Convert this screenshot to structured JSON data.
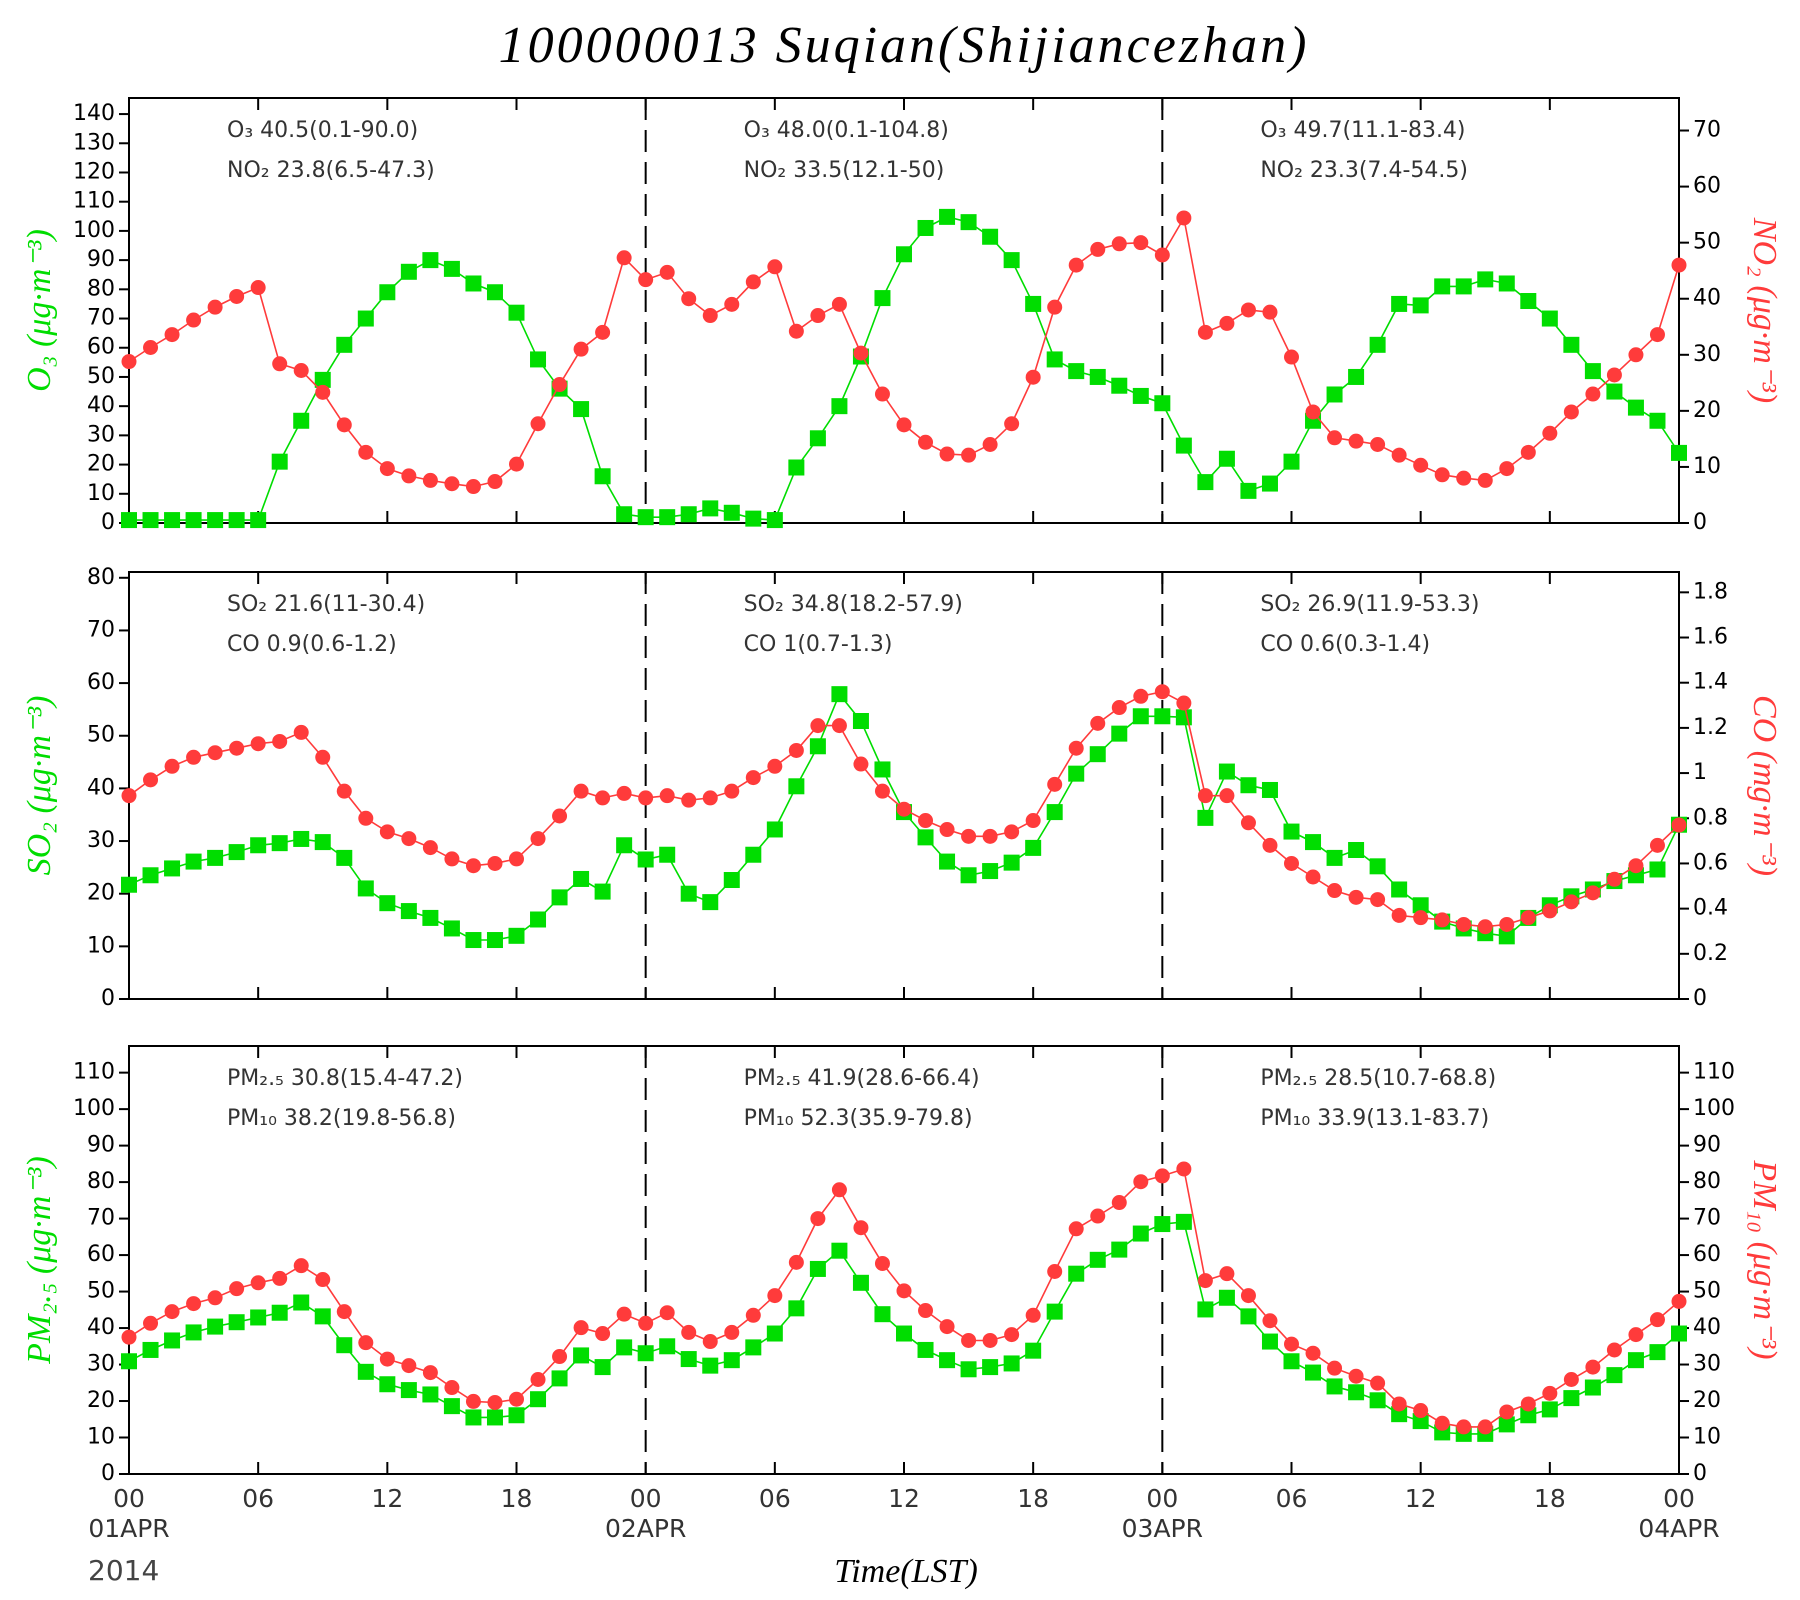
{
  "title": "100000013 Suqian(Shijiancezhan)",
  "xlabel": "Time(LST)",
  "year": "2014",
  "chart_data": [
    {
      "type": "line",
      "ylabel": "O₃   (μg·m⁻³)",
      "y2label": "NO₂   (μg·m⁻³)",
      "xlim": [
        0,
        72
      ],
      "xticks": [
        0,
        6,
        12,
        18,
        24,
        30,
        36,
        42,
        48,
        54,
        60,
        66,
        72
      ],
      "vlines": [
        24,
        48
      ],
      "ylim": [
        0,
        145.5
      ],
      "yticks": [
        0,
        10,
        20,
        30,
        40,
        50,
        60,
        70,
        80,
        90,
        100,
        110,
        120,
        130,
        140
      ],
      "y2lim": [
        0,
        75.8
      ],
      "y2ticks": [
        0,
        10,
        20,
        30,
        40,
        50,
        60,
        70
      ],
      "annotations": [
        [
          "O₃ 40.5(0.1-90.0)",
          "NO₂ 23.8(6.5-47.3)"
        ],
        [
          "O₃ 48.0(0.1-104.8)",
          "NO₂ 33.5(12.1-50)"
        ],
        [
          "O₃ 49.7(11.1-83.4)",
          "NO₂ 23.3(7.4-54.5)"
        ]
      ],
      "x": [
        0,
        1,
        2,
        3,
        4,
        5,
        6,
        7,
        8,
        9,
        10,
        11,
        12,
        13,
        14,
        15,
        16,
        17,
        18,
        19,
        20,
        21,
        22,
        23,
        24,
        25,
        26,
        27,
        28,
        29,
        30,
        31,
        32,
        33,
        34,
        35,
        36,
        37,
        38,
        39,
        40,
        41,
        42,
        43,
        44,
        45,
        46,
        47,
        48,
        49,
        50,
        51,
        52,
        53,
        54,
        55,
        56,
        57,
        58,
        59,
        60,
        61,
        62,
        63,
        64,
        65,
        66,
        67,
        68,
        69,
        70,
        71,
        72
      ],
      "series": [
        {
          "color": "#00dd00",
          "marker": "square",
          "axis": "y",
          "values": [
            1,
            1,
            1,
            1,
            1,
            1,
            1,
            21,
            35,
            49,
            61,
            70,
            79,
            86,
            90,
            87,
            82,
            79,
            72,
            56,
            46,
            39,
            16,
            3,
            2,
            2,
            3,
            5,
            3.5,
            1.5,
            1,
            19,
            29,
            40,
            57,
            77,
            92,
            101,
            104.8,
            103,
            98,
            90,
            75,
            56,
            52,
            50,
            47,
            43.5,
            41,
            26.5,
            14,
            22,
            11,
            13.5,
            21,
            35,
            44,
            50,
            61,
            75,
            74.5,
            81,
            81,
            83.4,
            82,
            76,
            70,
            61,
            52,
            45,
            39.5,
            35,
            24
          ]
        },
        {
          "color": "#ff3b3b",
          "marker": "circle",
          "axis": "y2",
          "values": [
            28.8,
            31.3,
            33.6,
            36.2,
            38.5,
            40.4,
            42,
            28.4,
            27.2,
            23.3,
            17.5,
            12.6,
            9.7,
            8.4,
            7.6,
            7,
            6.5,
            7.4,
            10.5,
            17.7,
            24.7,
            31,
            34,
            47.3,
            43.4,
            44.7,
            40,
            37,
            39,
            43,
            45.7,
            34.2,
            37,
            39,
            30.3,
            23,
            17.5,
            14.4,
            12.3,
            12.1,
            14,
            17.7,
            26,
            38.5,
            46,
            48.8,
            49.8,
            50,
            47.8,
            54.4,
            34,
            35.6,
            38,
            37.6,
            29.6,
            19.8,
            15.2,
            14.6,
            14,
            12.1,
            10.3,
            8.6,
            8,
            7.6,
            9.7,
            12.6,
            16,
            19.8,
            23,
            26.4,
            30,
            33.6,
            46
          ]
        }
      ]
    },
    {
      "type": "line",
      "ylabel": "SO₂   (μg·m⁻³)",
      "y2label": "CO   (mg·m⁻³)",
      "xlim": [
        0,
        72
      ],
      "xticks": [
        0,
        6,
        12,
        18,
        24,
        30,
        36,
        42,
        48,
        54,
        60,
        66,
        72
      ],
      "vlines": [
        24,
        48
      ],
      "ylim": [
        0,
        81.1
      ],
      "yticks": [
        0,
        10,
        20,
        30,
        40,
        50,
        60,
        70,
        80
      ],
      "y2lim": [
        0,
        1.89
      ],
      "y2ticks": [
        0,
        0.2,
        0.4,
        0.6,
        0.8,
        1,
        1.2,
        1.4,
        1.6,
        1.8
      ],
      "annotations": [
        [
          "SO₂ 21.6(11-30.4)",
          "CO 0.9(0.6-1.2)"
        ],
        [
          "SO₂ 34.8(18.2-57.9)",
          "CO 1(0.7-1.3)"
        ],
        [
          "SO₂ 26.9(11.9-53.3)",
          "CO 0.6(0.3-1.4)"
        ]
      ],
      "x": [
        0,
        1,
        2,
        3,
        4,
        5,
        6,
        7,
        8,
        9,
        10,
        11,
        12,
        13,
        14,
        15,
        16,
        17,
        18,
        19,
        20,
        21,
        22,
        23,
        24,
        25,
        26,
        27,
        28,
        29,
        30,
        31,
        32,
        33,
        34,
        35,
        36,
        37,
        38,
        39,
        40,
        41,
        42,
        43,
        44,
        45,
        46,
        47,
        48,
        49,
        50,
        51,
        52,
        53,
        54,
        55,
        56,
        57,
        58,
        59,
        60,
        61,
        62,
        63,
        64,
        65,
        66,
        67,
        68,
        69,
        70,
        71,
        72
      ],
      "series": [
        {
          "color": "#00dd00",
          "marker": "square",
          "axis": "y",
          "values": [
            21.7,
            23.5,
            24.8,
            26.1,
            26.8,
            27.9,
            29.2,
            29.6,
            30.4,
            29.8,
            26.8,
            21,
            18.2,
            16.7,
            15.4,
            13.4,
            11.2,
            11.2,
            12,
            15.1,
            19.3,
            22.8,
            20.4,
            29.2,
            26.5,
            27.4,
            20,
            18.4,
            22.6,
            27.4,
            32.2,
            40.4,
            48,
            57.9,
            52.8,
            43.6,
            35.5,
            30.7,
            26.1,
            23.5,
            24.3,
            25.9,
            28.7,
            35.5,
            42.8,
            46.5,
            50.4,
            53.7,
            53.7,
            53.5,
            34.4,
            43.2,
            40.6,
            39.7,
            31.8,
            29.8,
            26.8,
            28.3,
            25.2,
            20.8,
            17.8,
            14.7,
            13.4,
            12.5,
            11.9,
            15.4,
            17.8,
            19.5,
            20.8,
            22.4,
            23.5,
            24.6,
            33.1
          ]
        },
        {
          "color": "#ff3b3b",
          "marker": "circle",
          "axis": "y2",
          "values": [
            0.9,
            0.97,
            1.03,
            1.07,
            1.09,
            1.11,
            1.13,
            1.14,
            1.18,
            1.07,
            0.92,
            0.8,
            0.74,
            0.71,
            0.67,
            0.62,
            0.59,
            0.6,
            0.62,
            0.71,
            0.81,
            0.92,
            0.89,
            0.91,
            0.89,
            0.9,
            0.88,
            0.89,
            0.92,
            0.98,
            1.03,
            1.1,
            1.21,
            1.21,
            1.04,
            0.92,
            0.84,
            0.79,
            0.75,
            0.72,
            0.72,
            0.74,
            0.79,
            0.95,
            1.11,
            1.22,
            1.29,
            1.34,
            1.36,
            1.31,
            0.9,
            0.9,
            0.78,
            0.68,
            0.6,
            0.54,
            0.48,
            0.45,
            0.44,
            0.37,
            0.36,
            0.35,
            0.33,
            0.32,
            0.33,
            0.36,
            0.39,
            0.43,
            0.47,
            0.53,
            0.59,
            0.68,
            0.77
          ]
        }
      ]
    },
    {
      "type": "line",
      "ylabel": "PM₂.₅   (μg·m⁻³)",
      "y2label": "PM₁₀   (μg·m⁻³)",
      "xlim": [
        0,
        72
      ],
      "xticks": [
        {
          "value": 0,
          "label": "00"
        },
        {
          "value": 6,
          "label": "06"
        },
        {
          "value": 12,
          "label": "12"
        },
        {
          "value": 18,
          "label": "18"
        },
        {
          "value": 24,
          "label": "00"
        },
        {
          "value": 30,
          "label": "06"
        },
        {
          "value": 36,
          "label": "12"
        },
        {
          "value": 42,
          "label": "18"
        },
        {
          "value": 48,
          "label": "00"
        },
        {
          "value": 54,
          "label": "06"
        },
        {
          "value": 60,
          "label": "12"
        },
        {
          "value": 66,
          "label": "18"
        },
        {
          "value": 72,
          "label": "00"
        }
      ],
      "date_ticks": [
        {
          "value": 0,
          "label": "01APR"
        },
        {
          "value": 24,
          "label": "02APR"
        },
        {
          "value": 48,
          "label": "03APR"
        },
        {
          "value": 72,
          "label": "04APR"
        }
      ],
      "vlines": [
        24,
        48
      ],
      "ylim": [
        0,
        117.3
      ],
      "yticks": [
        0,
        10,
        20,
        30,
        40,
        50,
        60,
        70,
        80,
        90,
        100,
        110
      ],
      "y2lim": [
        0,
        117.3
      ],
      "y2ticks": [
        0,
        10,
        20,
        30,
        40,
        50,
        60,
        70,
        80,
        90,
        100,
        110
      ],
      "annotations": [
        [
          "PM₂.₅ 30.8(15.4-47.2)",
          "PM₁₀ 38.2(19.8-56.8)"
        ],
        [
          "PM₂.₅ 41.9(28.6-66.4)",
          "PM₁₀ 52.3(35.9-79.8)"
        ],
        [
          "PM₂.₅ 28.5(10.7-68.8)",
          "PM₁₀ 33.9(13.1-83.7)"
        ]
      ],
      "x": [
        0,
        1,
        2,
        3,
        4,
        5,
        6,
        7,
        8,
        9,
        10,
        11,
        12,
        13,
        14,
        15,
        16,
        17,
        18,
        19,
        20,
        21,
        22,
        23,
        24,
        25,
        26,
        27,
        28,
        29,
        30,
        31,
        32,
        33,
        34,
        35,
        36,
        37,
        38,
        39,
        40,
        41,
        42,
        43,
        44,
        45,
        46,
        47,
        48,
        49,
        50,
        51,
        52,
        53,
        54,
        55,
        56,
        57,
        58,
        59,
        60,
        61,
        62,
        63,
        64,
        65,
        66,
        67,
        68,
        69,
        70,
        71,
        72
      ],
      "series": [
        {
          "color": "#00dd00",
          "marker": "square",
          "axis": "y",
          "values": [
            30.9,
            34,
            36.6,
            38.8,
            40.4,
            41.6,
            42.9,
            44.2,
            47,
            43.2,
            35.3,
            28,
            24.6,
            23,
            21.8,
            18.6,
            15.5,
            15.5,
            16.1,
            20.5,
            26.2,
            32.5,
            29.3,
            34.7,
            33.1,
            35,
            31.5,
            29.7,
            31.2,
            34.7,
            38.5,
            45.4,
            56.2,
            61.2,
            52.4,
            43.8,
            38.5,
            34,
            31.2,
            28.7,
            29.3,
            30.3,
            33.8,
            44.5,
            54.9,
            58.7,
            61.5,
            65.9,
            68.5,
            69.1,
            45.1,
            48.3,
            43.2,
            36.3,
            30.9,
            27.8,
            24,
            22.4,
            20.2,
            16.4,
            14.5,
            11.4,
            11,
            11,
            13.6,
            16.1,
            17.7,
            20.8,
            23.7,
            27.1,
            31.2,
            33.4,
            38.5
          ]
        },
        {
          "color": "#ff3b3b",
          "marker": "circle",
          "axis": "y2",
          "values": [
            37.5,
            41.3,
            44.5,
            46.7,
            48.3,
            50.8,
            52.4,
            53.6,
            57.1,
            53.3,
            44.5,
            36,
            31.5,
            29.7,
            27.8,
            23.7,
            19.9,
            19.6,
            20.5,
            25.9,
            32.2,
            40.1,
            38.5,
            43.8,
            41.3,
            44.2,
            38.8,
            36.3,
            38.8,
            43.5,
            48.9,
            58,
            70,
            77.9,
            67.5,
            57.7,
            50.2,
            44.8,
            40.4,
            36.6,
            36.6,
            38.2,
            43.5,
            55.5,
            67.2,
            70.7,
            74.4,
            80.1,
            81.7,
            83.6,
            53,
            54.9,
            48.9,
            42,
            35.6,
            33.1,
            29,
            26.8,
            24.9,
            19.2,
            17.4,
            13.9,
            12.9,
            12.9,
            17,
            19.2,
            22.1,
            25.9,
            29.3,
            34,
            38.2,
            42.3,
            47.3
          ]
        }
      ]
    }
  ]
}
